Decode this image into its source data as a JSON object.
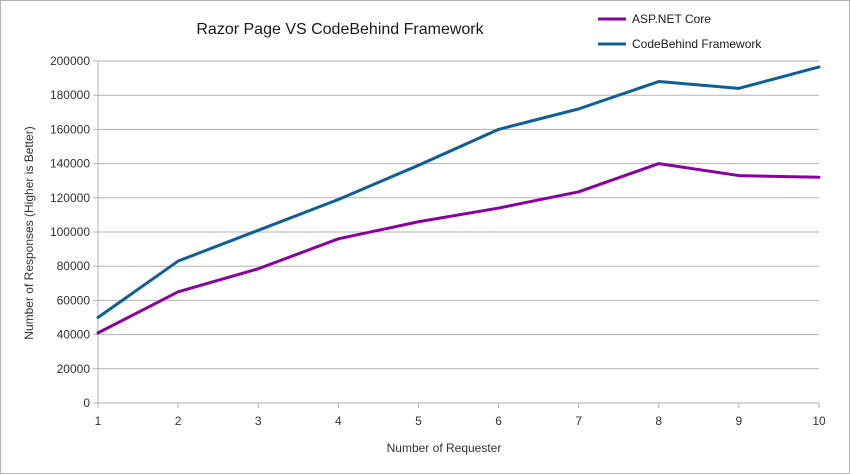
{
  "chart_data": {
    "type": "line",
    "title": "Razor Page VS CodeBehind Framework",
    "xlabel": "Number of Requester",
    "ylabel": "Number of Responses (Higher is Better)",
    "x": [
      1,
      2,
      3,
      4,
      5,
      6,
      7,
      8,
      9,
      10
    ],
    "x_tick_labels": [
      "1",
      "2",
      "3",
      "4",
      "5",
      "6",
      "7",
      "8",
      "9",
      "10"
    ],
    "ylim": [
      0,
      200000
    ],
    "y_ticks": [
      0,
      20000,
      40000,
      60000,
      80000,
      100000,
      120000,
      140000,
      160000,
      180000,
      200000
    ],
    "y_tick_labels": [
      "0",
      "20000",
      "40000",
      "60000",
      "80000",
      "100000",
      "120000",
      "140000",
      "160000",
      "180000",
      "200000"
    ],
    "grid": "horizontal",
    "legend_position": "top-right",
    "series": [
      {
        "name": "ASP.NET Core",
        "color": "#8b00a0",
        "values": [
          41000,
          65000,
          78500,
          96000,
          106000,
          114000,
          123500,
          140000,
          133000,
          132000
        ]
      },
      {
        "name": "CodeBehind Framework",
        "color": "#0d5f96",
        "values": [
          50000,
          83000,
          101000,
          119000,
          139000,
          160000,
          172000,
          188000,
          184000,
          196500
        ]
      }
    ]
  }
}
